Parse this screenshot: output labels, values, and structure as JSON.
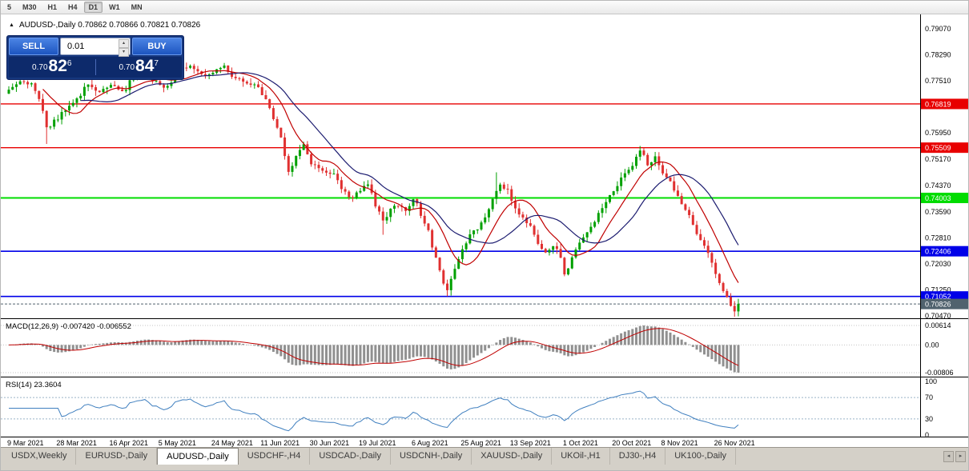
{
  "toolbar": {
    "timeframes": [
      {
        "label": "5",
        "active": false
      },
      {
        "label": "M30",
        "active": false
      },
      {
        "label": "H1",
        "active": false
      },
      {
        "label": "H4",
        "active": false
      },
      {
        "label": "D1",
        "active": true
      },
      {
        "label": "W1",
        "active": false
      },
      {
        "label": "MN",
        "active": false
      }
    ]
  },
  "chart_header": {
    "collapse_icon": "▲",
    "title": "AUDUSD-,Daily 0.70862 0.70866 0.70821 0.70826"
  },
  "trade_panel": {
    "sell_label": "SELL",
    "buy_label": "BUY",
    "volume": "0.01",
    "volume_up_icon": "▴",
    "volume_down_icon": "▾",
    "sell_price": {
      "prefix": "0.70",
      "big": "82",
      "sup": "6"
    },
    "buy_price": {
      "prefix": "0.70",
      "big": "84",
      "sup": "7"
    }
  },
  "indicators": {
    "macd_label": "MACD(12,26,9) -0.007420 -0.006552",
    "rsi_label": "RSI(14) 23.3604"
  },
  "tab_scroll": {
    "left": "◂",
    "right": "▸"
  },
  "tabs": [
    {
      "label": "USDX,Weekly",
      "active": false
    },
    {
      "label": "EURUSD-,Daily",
      "active": false
    },
    {
      "label": "AUDUSD-,Daily",
      "active": true
    },
    {
      "label": "USDCHF-,H4",
      "active": false
    },
    {
      "label": "USDCAD-,Daily",
      "active": false
    },
    {
      "label": "USDCNH-,Daily",
      "active": false
    },
    {
      "label": "XAUUSD-,Daily",
      "active": false
    },
    {
      "label": "UKOil-,H1",
      "active": false
    },
    {
      "label": "DJ30-,H4",
      "active": false
    },
    {
      "label": "UK100-,Daily",
      "active": false
    }
  ],
  "chart_data": {
    "type": "candlestick",
    "symbol": "AUDUSD-",
    "timeframe": "Daily",
    "quote": {
      "open": "0.70862",
      "high": "0.70866",
      "low": "0.70821",
      "close": "0.70826"
    },
    "price_range": [
      0.7047,
      0.7907
    ],
    "y_axis_labels": [
      "0.79070",
      "0.78290",
      "0.77510",
      "0.76730",
      "0.75950",
      "0.75170",
      "0.74370",
      "0.73590",
      "0.72810",
      "0.72030",
      "0.71250",
      "0.70470"
    ],
    "x_labels": [
      {
        "day": 0,
        "label": "9 Mar 2021"
      },
      {
        "day": 13,
        "label": "28 Mar 2021"
      },
      {
        "day": 27,
        "label": "16 Apr 2021"
      },
      {
        "day": 40,
        "label": "5 May 2021"
      },
      {
        "day": 54,
        "label": "24 May 2021"
      },
      {
        "day": 67,
        "label": "11 Jun 2021"
      },
      {
        "day": 80,
        "label": "30 Jun 2021"
      },
      {
        "day": 93,
        "label": "19 Jul 2021"
      },
      {
        "day": 107,
        "label": "6 Aug 2021"
      },
      {
        "day": 120,
        "label": "25 Aug 2021"
      },
      {
        "day": 133,
        "label": "13 Sep 2021"
      },
      {
        "day": 147,
        "label": "1 Oct 2021"
      },
      {
        "day": 160,
        "label": "20 Oct 2021"
      },
      {
        "day": 173,
        "label": "8 Nov 2021"
      },
      {
        "day": 187,
        "label": "26 Nov 2021"
      }
    ],
    "num_bars": 194,
    "anchors": [
      [
        0,
        0.772
      ],
      [
        3,
        0.7752
      ],
      [
        6,
        0.7738
      ],
      [
        8,
        0.77
      ],
      [
        10,
        0.7608
      ],
      [
        12,
        0.7628
      ],
      [
        15,
        0.7665
      ],
      [
        18,
        0.77
      ],
      [
        21,
        0.7738
      ],
      [
        24,
        0.7718
      ],
      [
        27,
        0.7742
      ],
      [
        30,
        0.772
      ],
      [
        33,
        0.7758
      ],
      [
        36,
        0.7772
      ],
      [
        39,
        0.7745
      ],
      [
        42,
        0.773
      ],
      [
        45,
        0.7782
      ],
      [
        48,
        0.779
      ],
      [
        51,
        0.7768
      ],
      [
        54,
        0.7778
      ],
      [
        57,
        0.779
      ],
      [
        60,
        0.7762
      ],
      [
        63,
        0.7742
      ],
      [
        66,
        0.7735
      ],
      [
        68,
        0.769
      ],
      [
        70,
        0.764
      ],
      [
        72,
        0.758
      ],
      [
        74,
        0.7485
      ],
      [
        76,
        0.752
      ],
      [
        78,
        0.756
      ],
      [
        80,
        0.7505
      ],
      [
        83,
        0.7478
      ],
      [
        86,
        0.7468
      ],
      [
        88,
        0.743
      ],
      [
        90,
        0.7398
      ],
      [
        93,
        0.7428
      ],
      [
        95,
        0.7442
      ],
      [
        97,
        0.738
      ],
      [
        99,
        0.7332
      ],
      [
        101,
        0.7365
      ],
      [
        103,
        0.7382
      ],
      [
        105,
        0.7358
      ],
      [
        107,
        0.7402
      ],
      [
        109,
        0.7352
      ],
      [
        111,
        0.7298
      ],
      [
        113,
        0.7215
      ],
      [
        115,
        0.714
      ],
      [
        116,
        0.7128
      ],
      [
        118,
        0.719
      ],
      [
        120,
        0.7242
      ],
      [
        122,
        0.7292
      ],
      [
        124,
        0.7312
      ],
      [
        126,
        0.7348
      ],
      [
        128,
        0.7398
      ],
      [
        130,
        0.7438
      ],
      [
        132,
        0.742
      ],
      [
        134,
        0.7368
      ],
      [
        136,
        0.7342
      ],
      [
        138,
        0.7312
      ],
      [
        140,
        0.7268
      ],
      [
        142,
        0.7232
      ],
      [
        144,
        0.7262
      ],
      [
        146,
        0.7222
      ],
      [
        147,
        0.7172
      ],
      [
        149,
        0.7218
      ],
      [
        151,
        0.7262
      ],
      [
        153,
        0.7292
      ],
      [
        155,
        0.7335
      ],
      [
        157,
        0.7368
      ],
      [
        159,
        0.7402
      ],
      [
        161,
        0.7438
      ],
      [
        163,
        0.7472
      ],
      [
        165,
        0.7502
      ],
      [
        167,
        0.7548
      ],
      [
        169,
        0.7502
      ],
      [
        171,
        0.7525
      ],
      [
        173,
        0.7472
      ],
      [
        175,
        0.7448
      ],
      [
        177,
        0.7405
      ],
      [
        179,
        0.7368
      ],
      [
        181,
        0.7322
      ],
      [
        183,
        0.7272
      ],
      [
        185,
        0.7238
      ],
      [
        187,
        0.7172
      ],
      [
        189,
        0.7128
      ],
      [
        191,
        0.7082
      ],
      [
        192,
        0.7062
      ],
      [
        193,
        0.70826
      ]
    ],
    "wick_events": [
      {
        "day": 10,
        "low": 0.7562
      },
      {
        "day": 74,
        "low": 0.7478
      },
      {
        "day": 99,
        "low": 0.729
      },
      {
        "day": 116,
        "low": 0.7106
      },
      {
        "day": 129,
        "high": 0.7477
      },
      {
        "day": 147,
        "low": 0.7168
      },
      {
        "day": 167,
        "high": 0.7556
      },
      {
        "day": 192,
        "low": 0.703
      }
    ],
    "levels": [
      {
        "price": 0.76819,
        "label": "0.76819",
        "color": "#e80000",
        "width": 1.4
      },
      {
        "price": 0.75509,
        "label": "0.75509",
        "color": "#e80000",
        "width": 1.4
      },
      {
        "price": 0.74003,
        "label": "0.74003",
        "color": "#00dc00",
        "width": 2
      },
      {
        "price": 0.72406,
        "label": "0.72406",
        "color": "#0000e8",
        "width": 1.6
      },
      {
        "price": 0.71052,
        "label": "0.71052",
        "color": "#0000e8",
        "width": 1.6
      }
    ],
    "current_price": {
      "value": 0.70826,
      "label": "0.70826",
      "color": "#50626e"
    },
    "ma": [
      {
        "period": 10,
        "color": "#c00000"
      },
      {
        "period": 20,
        "color": "#1c1c70"
      }
    ],
    "colors": {
      "up": "#00a000",
      "down": "#e03030",
      "macd_bar": "#909090",
      "macd_signal": "#c00000",
      "rsi_line": "#3f7fbf"
    },
    "macd": {
      "params": "12,26,9",
      "main": -0.00742,
      "signal": -0.006552,
      "axis_labels": [
        "0.00614",
        "0.00",
        "-0.00806"
      ]
    },
    "rsi": {
      "period": 14,
      "value": 23.3604,
      "axis_labels": [
        "100",
        "70",
        "30",
        "0"
      ],
      "levels": [
        70,
        30
      ]
    }
  }
}
